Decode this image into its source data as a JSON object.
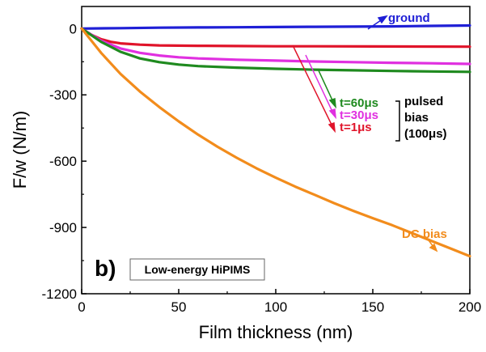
{
  "chart_data": {
    "type": "line",
    "xlabel": "Film thickness (nm)",
    "ylabel": "F/w (N/m)",
    "xlim": [
      0,
      200
    ],
    "ylim": [
      -1200,
      100
    ],
    "x_ticks": [
      0,
      50,
      100,
      150,
      200
    ],
    "y_ticks": [
      0,
      -300,
      -600,
      -900,
      -1200
    ],
    "x_tick_labels": [
      "0",
      "50",
      "100",
      "150",
      "200"
    ],
    "y_tick_labels": [
      "0",
      "-300",
      "-600",
      "-900",
      "-1200"
    ],
    "grid": false,
    "panel_label": "b)",
    "panel_box_label": "Low-energy HiPIMS",
    "bias_group_label": [
      "pulsed",
      "bias",
      "(100μs)"
    ],
    "series": [
      {
        "name": "ground",
        "color": "#1f1fd6",
        "x": [
          0,
          20,
          40,
          60,
          80,
          100,
          120,
          140,
          160,
          180,
          200
        ],
        "y": [
          0,
          2,
          4,
          5,
          6,
          7,
          8,
          9,
          10,
          12,
          14
        ]
      },
      {
        "name": "t=1μs",
        "color": "#e0142a",
        "x": [
          0,
          5,
          10,
          15,
          20,
          30,
          40,
          60,
          80,
          100,
          120,
          150,
          200
        ],
        "y": [
          0,
          -28,
          -48,
          -60,
          -67,
          -73,
          -76,
          -78,
          -79,
          -80,
          -80,
          -81,
          -82
        ]
      },
      {
        "name": "t=30μs",
        "color": "#e030e0",
        "x": [
          0,
          10,
          20,
          30,
          40,
          50,
          60,
          80,
          100,
          120,
          140,
          160,
          180,
          200
        ],
        "y": [
          0,
          -55,
          -90,
          -110,
          -122,
          -130,
          -135,
          -141,
          -145,
          -149,
          -152,
          -155,
          -157,
          -160
        ]
      },
      {
        "name": "t=60μs",
        "color": "#1f8a1f",
        "x": [
          0,
          10,
          20,
          30,
          40,
          50,
          60,
          80,
          100,
          120,
          140,
          160,
          180,
          200
        ],
        "y": [
          0,
          -60,
          -105,
          -135,
          -152,
          -163,
          -170,
          -177,
          -182,
          -186,
          -189,
          -192,
          -194,
          -196
        ]
      },
      {
        "name": "DC bias",
        "color": "#f28c1c",
        "x": [
          0,
          10,
          20,
          30,
          40,
          50,
          60,
          70,
          80,
          90,
          100,
          110,
          120,
          130,
          140,
          150,
          160,
          170,
          180,
          190,
          200
        ],
        "y": [
          0,
          -110,
          -205,
          -285,
          -355,
          -420,
          -480,
          -535,
          -585,
          -632,
          -675,
          -715,
          -752,
          -790,
          -825,
          -858,
          -890,
          -925,
          -960,
          -995,
          -1030
        ]
      }
    ]
  }
}
